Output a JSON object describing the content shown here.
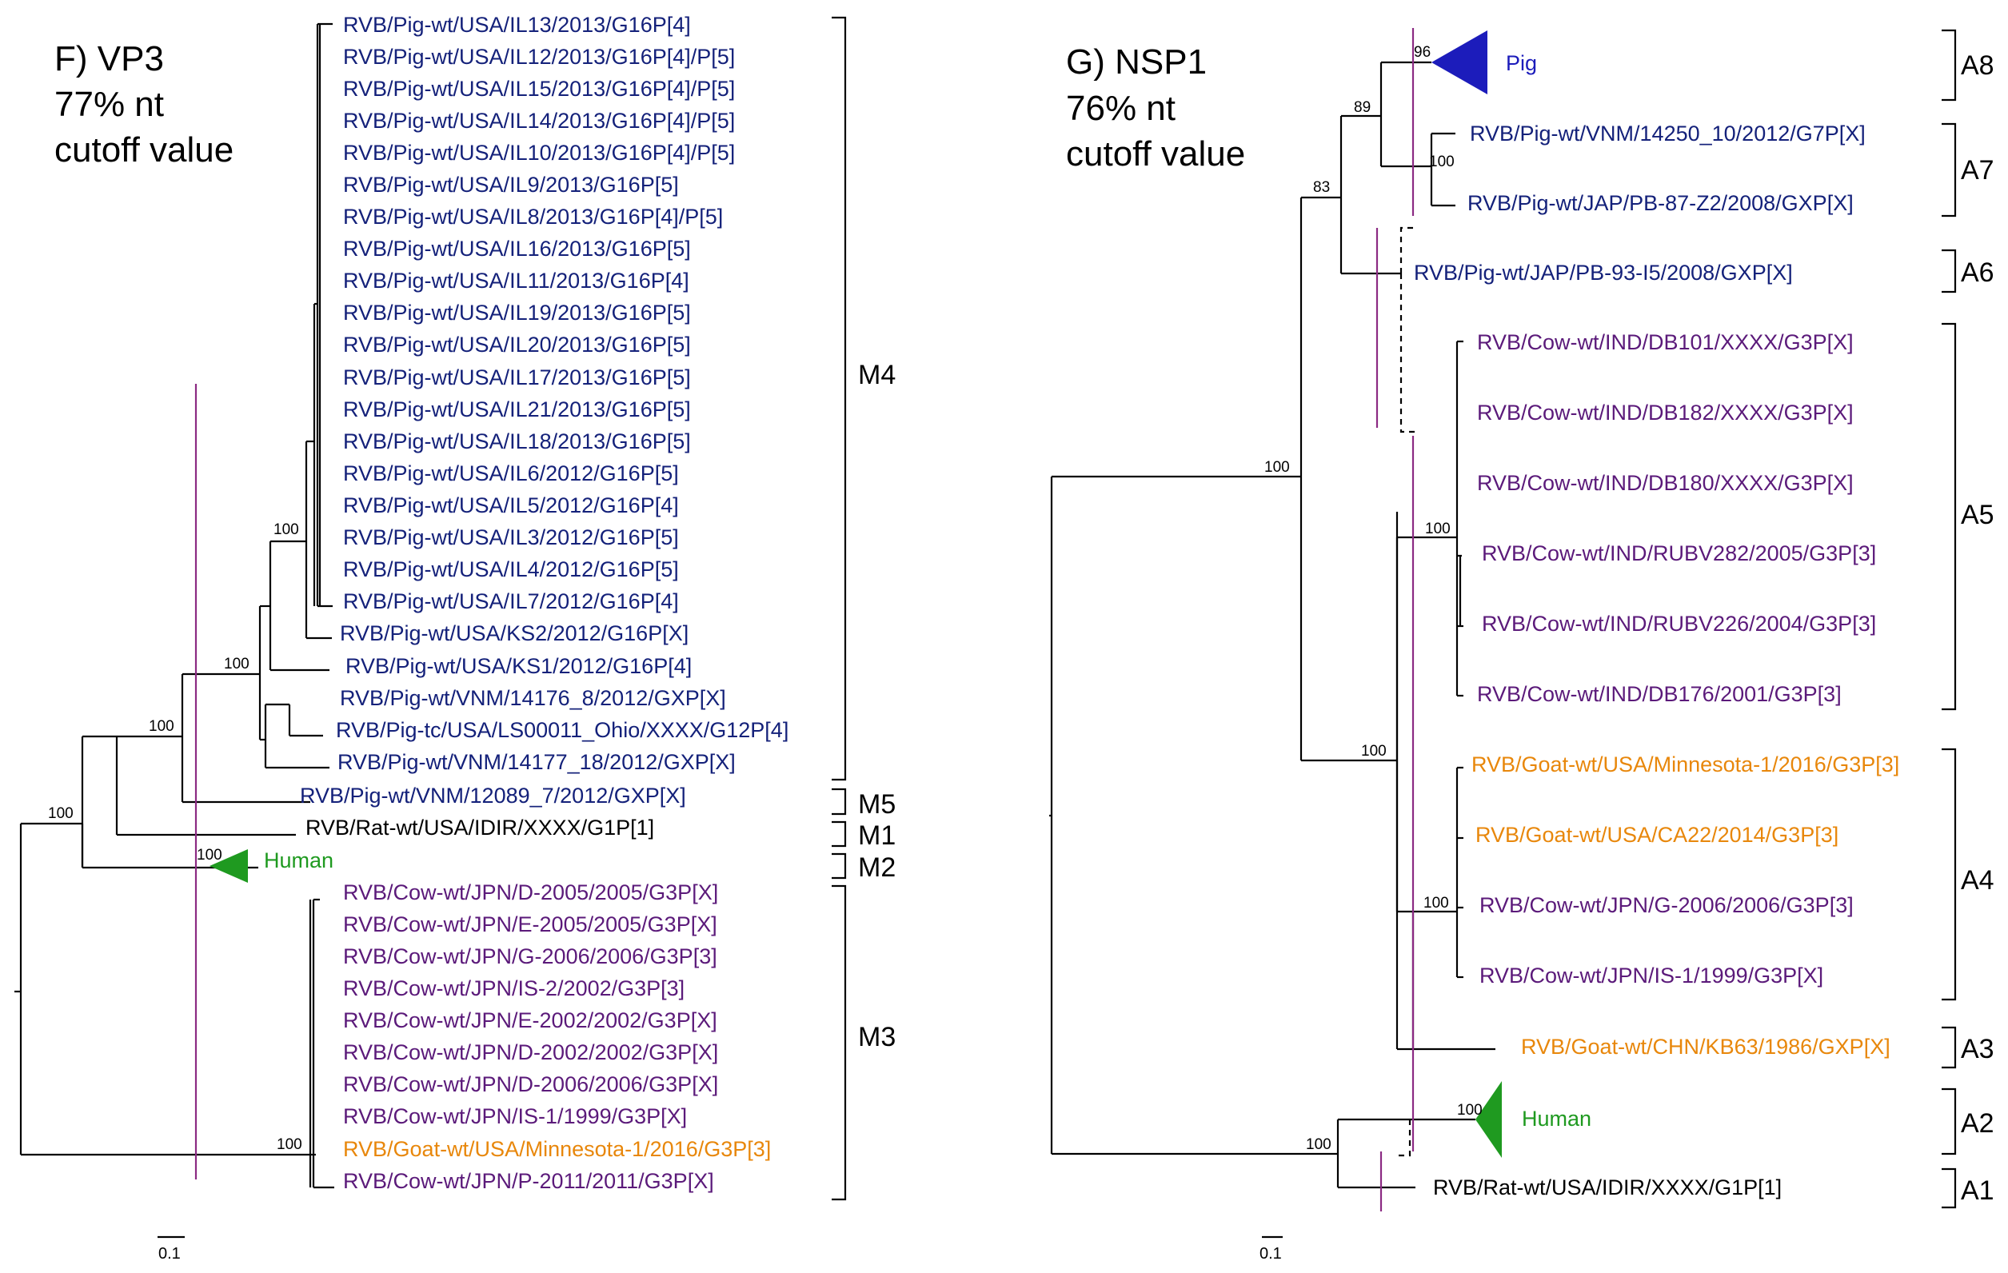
{
  "colors": {
    "pig": "#14217a",
    "cow": "#5b1a7a",
    "goat": "#e8870b",
    "rat": "#000000",
    "human": "#1f9a20",
    "pig_collapsed": "#1c1cbb",
    "cutoff_line": "#8b2a83"
  },
  "panelF": {
    "title_line1": "F) VP3",
    "title_line2": "77% nt",
    "title_line3": "cutoff value",
    "leaves": [
      {
        "label": "RVB/Pig-wt/USA/IL13/2013/G16P[4]",
        "host": "pig"
      },
      {
        "label": "RVB/Pig-wt/USA/IL12/2013/G16P[4]/P[5]",
        "host": "pig"
      },
      {
        "label": "RVB/Pig-wt/USA/IL15/2013/G16P[4]/P[5]",
        "host": "pig"
      },
      {
        "label": "RVB/Pig-wt/USA/IL14/2013/G16P[4]/P[5]",
        "host": "pig"
      },
      {
        "label": "RVB/Pig-wt/USA/IL10/2013/G16P[4]/P[5]",
        "host": "pig"
      },
      {
        "label": "RVB/Pig-wt/USA/IL9/2013/G16P[5]",
        "host": "pig"
      },
      {
        "label": "RVB/Pig-wt/USA/IL8/2013/G16P[4]/P[5]",
        "host": "pig"
      },
      {
        "label": "RVB/Pig-wt/USA/IL16/2013/G16P[5]",
        "host": "pig"
      },
      {
        "label": "RVB/Pig-wt/USA/IL11/2013/G16P[4]",
        "host": "pig"
      },
      {
        "label": "RVB/Pig-wt/USA/IL19/2013/G16P[5]",
        "host": "pig"
      },
      {
        "label": "RVB/Pig-wt/USA/IL20/2013/G16P[5]",
        "host": "pig"
      },
      {
        "label": "RVB/Pig-wt/USA/IL17/2013/G16P[5]",
        "host": "pig"
      },
      {
        "label": "RVB/Pig-wt/USA/IL21/2013/G16P[5]",
        "host": "pig"
      },
      {
        "label": "RVB/Pig-wt/USA/IL18/2013/G16P[5]",
        "host": "pig"
      },
      {
        "label": "RVB/Pig-wt/USA/IL6/2012/G16P[5]",
        "host": "pig"
      },
      {
        "label": "RVB/Pig-wt/USA/IL5/2012/G16P[4]",
        "host": "pig"
      },
      {
        "label": "RVB/Pig-wt/USA/IL3/2012/G16P[5]",
        "host": "pig"
      },
      {
        "label": "RVB/Pig-wt/USA/IL4/2012/G16P[5]",
        "host": "pig"
      },
      {
        "label": "RVB/Pig-wt/USA/IL7/2012/G16P[4]",
        "host": "pig"
      },
      {
        "label": "RVB/Pig-wt/USA/KS2/2012/G16P[X]",
        "host": "pig"
      },
      {
        "label": "RVB/Pig-wt/USA/KS1/2012/G16P[4]",
        "host": "pig"
      },
      {
        "label": "RVB/Pig-wt/VNM/14176_8/2012/GXP[X]",
        "host": "pig"
      },
      {
        "label": "RVB/Pig-tc/USA/LS00011_Ohio/XXXX/G12P[4]",
        "host": "pig"
      },
      {
        "label": "RVB/Pig-wt/VNM/14177_18/2012/GXP[X]",
        "host": "pig"
      },
      {
        "label": "RVB/Pig-wt/VNM/12089_7/2012/GXP[X]",
        "host": "pig"
      },
      {
        "label": "RVB/Rat-wt/USA/IDIR/XXXX/G1P[1]",
        "host": "rat"
      },
      {
        "label": "Human",
        "host": "human"
      },
      {
        "label": "RVB/Cow-wt/JPN/D-2005/2005/G3P[X]",
        "host": "cow"
      },
      {
        "label": "RVB/Cow-wt/JPN/E-2005/2005/G3P[X]",
        "host": "cow"
      },
      {
        "label": "RVB/Cow-wt/JPN/G-2006/2006/G3P[3]",
        "host": "cow"
      },
      {
        "label": "RVB/Cow-wt/JPN/IS-2/2002/G3P[3]",
        "host": "cow"
      },
      {
        "label": "RVB/Cow-wt/JPN/E-2002/2002/G3P[X]",
        "host": "cow"
      },
      {
        "label": "RVB/Cow-wt/JPN/D-2002/2002/G3P[X]",
        "host": "cow"
      },
      {
        "label": "RVB/Cow-wt/JPN/D-2006/2006/G3P[X]",
        "host": "cow"
      },
      {
        "label": "RVB/Cow-wt/JPN/IS-1/1999/G3P[X]",
        "host": "cow"
      },
      {
        "label": "RVB/Goat-wt/USA/Minnesota-1/2016/G3P[3]",
        "host": "goat"
      },
      {
        "label": "RVB/Cow-wt/JPN/P-2011/2011/G3P[X]",
        "host": "cow"
      }
    ],
    "supports": [
      "100",
      "100",
      "100",
      "100",
      "100",
      "100"
    ],
    "clades": [
      "M4",
      "M5",
      "M1",
      "M2",
      "M3"
    ],
    "scale_label": "0.1"
  },
  "panelG": {
    "title_line1": "G) NSP1",
    "title_line2": "76% nt",
    "title_line3": "cutoff value",
    "leaves": [
      {
        "label": "Pig",
        "host": "pig_collapsed"
      },
      {
        "label": "RVB/Pig-wt/VNM/14250_10/2012/G7P[X]",
        "host": "pig"
      },
      {
        "label": "RVB/Pig-wt/JAP/PB-87-Z2/2008/GXP[X]",
        "host": "pig"
      },
      {
        "label": "RVB/Pig-wt/JAP/PB-93-I5/2008/GXP[X]",
        "host": "pig"
      },
      {
        "label": "RVB/Cow-wt/IND/DB101/XXXX/G3P[X]",
        "host": "cow"
      },
      {
        "label": "RVB/Cow-wt/IND/DB182/XXXX/G3P[X]",
        "host": "cow"
      },
      {
        "label": "RVB/Cow-wt/IND/DB180/XXXX/G3P[X]",
        "host": "cow"
      },
      {
        "label": "RVB/Cow-wt/IND/RUBV282/2005/G3P[3]",
        "host": "cow"
      },
      {
        "label": "RVB/Cow-wt/IND/RUBV226/2004/G3P[3]",
        "host": "cow"
      },
      {
        "label": "RVB/Cow-wt/IND/DB176/2001/G3P[3]",
        "host": "cow"
      },
      {
        "label": "RVB/Goat-wt/USA/Minnesota-1/2016/G3P[3]",
        "host": "goat"
      },
      {
        "label": "RVB/Goat-wt/USA/CA22/2014/G3P[3]",
        "host": "goat"
      },
      {
        "label": "RVB/Cow-wt/JPN/G-2006/2006/G3P[3]",
        "host": "cow"
      },
      {
        "label": "RVB/Cow-wt/JPN/IS-1/1999/G3P[X]",
        "host": "cow"
      },
      {
        "label": "RVB/Goat-wt/CHN/KB63/1986/GXP[X]",
        "host": "goat"
      },
      {
        "label": "Human",
        "host": "human"
      },
      {
        "label": "RVB/Rat-wt/USA/IDIR/XXXX/G1P[1]",
        "host": "rat"
      }
    ],
    "supports": [
      "96",
      "89",
      "100",
      "83",
      "100",
      "100",
      "100",
      "100",
      "100",
      "100"
    ],
    "clades": [
      "A8",
      "A7",
      "A6",
      "A5",
      "A4",
      "A3",
      "A2",
      "A1"
    ],
    "scale_label": "0.1"
  }
}
